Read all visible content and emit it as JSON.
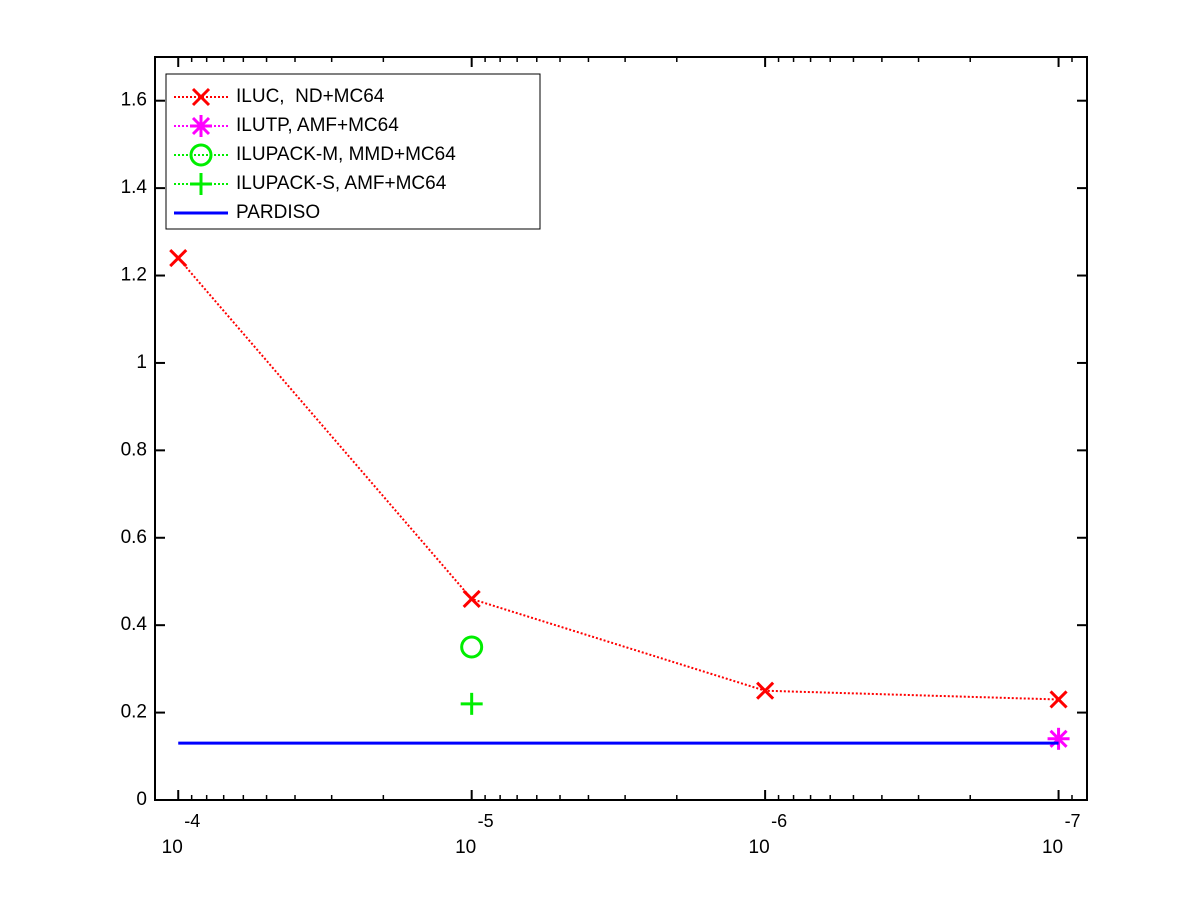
{
  "chart_data": {
    "type": "line",
    "xscale": "log",
    "xlim": [
      0.00012,
      8e-08
    ],
    "xticks": [
      {
        "value": 0.0001,
        "label": "10",
        "superscript": "-4"
      },
      {
        "value": 1e-05,
        "label": "10",
        "superscript": "-5"
      },
      {
        "value": 1e-06,
        "label": "10",
        "superscript": "-6"
      },
      {
        "value": 1e-07,
        "label": "10",
        "superscript": "-7"
      }
    ],
    "ylim": [
      0,
      1.7
    ],
    "yticks": [
      0,
      0.2,
      0.4,
      0.6,
      0.8,
      1,
      1.2,
      1.4,
      1.6
    ],
    "legend": "upper-left",
    "series": [
      {
        "name": "ILUC,  ND+MC64",
        "color": "#ff0000",
        "linestyle": "dotted",
        "marker": "x",
        "x": [
          0.0001,
          1e-05,
          1e-06,
          1e-07
        ],
        "values": [
          1.24,
          0.46,
          0.25,
          0.23
        ]
      },
      {
        "name": "ILUTP, AMF+MC64",
        "color": "#ff00ff",
        "linestyle": "dotted",
        "marker": "star",
        "x": [
          1e-07
        ],
        "values": [
          0.14
        ]
      },
      {
        "name": "ILUPACK-M, MMD+MC64",
        "color": "#00ee00",
        "linestyle": "dotted",
        "marker": "circle",
        "x": [
          1e-05
        ],
        "values": [
          0.35
        ]
      },
      {
        "name": "ILUPACK-S, AMF+MC64",
        "color": "#00ee00",
        "linestyle": "dotted",
        "marker": "plus",
        "x": [
          1e-05
        ],
        "values": [
          0.22
        ]
      },
      {
        "name": "PARDISO",
        "color": "#0000ff",
        "linestyle": "solid",
        "marker": "none",
        "x": [
          0.0001,
          1e-07
        ],
        "values": [
          0.13,
          0.13
        ]
      }
    ]
  }
}
